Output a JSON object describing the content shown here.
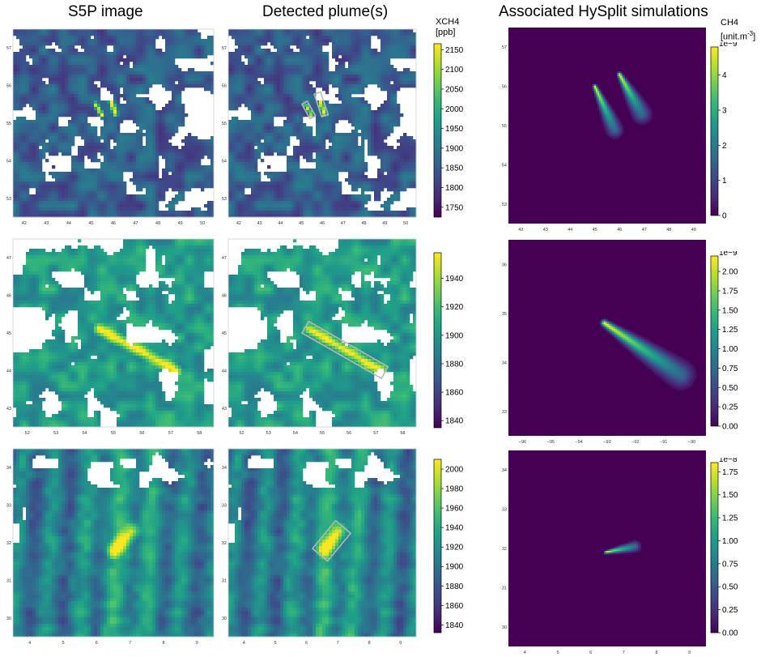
{
  "titles": {
    "s5p": "S5P image",
    "detected": "Detected plume(s)",
    "hysplit": "Associated HySplit simulations"
  },
  "units": {
    "xch4_line1": "XCH4",
    "xch4_line2": "[ppb]",
    "ch4_line1": "CH4",
    "ch4_line2_base": "[unit.m",
    "ch4_line2_exp": "-3",
    "ch4_line2_end": "]"
  },
  "colors": {
    "viridis": [
      "#440154",
      "#482878",
      "#3e4989",
      "#31688e",
      "#26828e",
      "#1f9e89",
      "#35b779",
      "#6ece58",
      "#b5de2b",
      "#fde725"
    ],
    "background_dark": "#440154",
    "plume_outline": "#b8b8b8"
  },
  "rows": [
    {
      "s5p": {
        "xticks": [
          "42",
          "43",
          "44",
          "45",
          "46",
          "47",
          "48",
          "49",
          "50"
        ],
        "yticks": [
          "57",
          "56",
          "55",
          "54",
          "53"
        ],
        "cbar_ticks": [
          1750,
          1800,
          1850,
          1900,
          1950,
          2000,
          2050,
          2100,
          2150
        ],
        "cbar_range": [
          1725,
          2165
        ],
        "plumes": [
          {
            "x1": 45.2,
            "y1": 55.5,
            "x2": 45.5,
            "y2": 55.2,
            "w": 0.12
          },
          {
            "x1": 45.8,
            "y1": 55.75,
            "x2": 46.1,
            "y2": 55.25,
            "w": 0.13
          }
        ]
      },
      "hysplit": {
        "xticks": [
          "42",
          "43",
          "44",
          "45",
          "46",
          "47",
          "48",
          "49"
        ],
        "yticks": [
          "57",
          "56",
          "55",
          "54",
          "53"
        ],
        "exponent_label": "1e−9",
        "cbar_ticks": [
          "0",
          "1",
          "2",
          "3",
          "4"
        ],
        "cbar_range": [
          0,
          4.8
        ],
        "sims": [
          {
            "x1": 45.0,
            "y1": 56.0,
            "x2": 45.8,
            "y2": 54.9,
            "w": 0.35
          },
          {
            "x1": 46.0,
            "y1": 56.3,
            "x2": 46.9,
            "y2": 55.3,
            "w": 0.4
          }
        ]
      }
    },
    {
      "s5p": {
        "xticks": [
          "52",
          "53",
          "54",
          "55",
          "56",
          "57",
          "58"
        ],
        "yticks": [
          "47",
          "46",
          "45",
          "44",
          "43"
        ],
        "cbar_ticks": [
          1840,
          1860,
          1880,
          1900,
          1920,
          1940
        ],
        "cbar_range": [
          1835,
          1958
        ],
        "plumes": [
          {
            "x1": 54.5,
            "y1": 45.1,
            "x2": 57.2,
            "y2": 44.0,
            "w": 0.2
          }
        ]
      },
      "hysplit": {
        "xticks": [
          "−96",
          "−95",
          "−94",
          "−93",
          "−92",
          "−91",
          "−90"
        ],
        "yticks": [
          "36",
          "35",
          "34",
          "33"
        ],
        "exponent_label": "1e−9",
        "cbar_ticks": [
          "0.00",
          "0.25",
          "0.50",
          "0.75",
          "1.00",
          "1.25",
          "1.50",
          "1.75",
          "2.00"
        ],
        "cbar_range": [
          0,
          2.2
        ],
        "sims": [
          {
            "x1": -93.1,
            "y1": 34.8,
            "x2": -90.4,
            "y2": 33.75,
            "w": 0.5
          }
        ]
      }
    },
    {
      "s5p": {
        "xticks": [
          "4",
          "5",
          "6",
          "7",
          "8",
          "9"
        ],
        "yticks": [
          "34",
          "33",
          "32",
          "31",
          "30"
        ],
        "cbar_ticks": [
          1840,
          1860,
          1880,
          1900,
          1920,
          1940,
          1960,
          1980,
          2000
        ],
        "cbar_range": [
          1832,
          2010
        ],
        "plumes": [
          {
            "x1": 6.55,
            "y1": 31.8,
            "x2": 7.05,
            "y2": 32.3,
            "w": 0.25
          }
        ]
      },
      "hysplit": {
        "xticks": [
          "4",
          "5",
          "6",
          "7",
          "8",
          "9"
        ],
        "yticks": [
          "34",
          "33",
          "32",
          "31",
          "30"
        ],
        "exponent_label": "1e−8",
        "cbar_ticks": [
          "0.00",
          "0.25",
          "0.50",
          "0.75",
          "1.00",
          "1.25",
          "1.50",
          "1.75"
        ],
        "cbar_range": [
          0,
          1.85
        ],
        "sims": [
          {
            "x1": 6.45,
            "y1": 31.9,
            "x2": 7.35,
            "y2": 32.05,
            "w": 0.12
          }
        ]
      }
    }
  ],
  "chart_data": [
    {
      "type": "heatmap",
      "title": "S5P image",
      "rows": 3,
      "colorbar_label": "XCH4 [ppb]",
      "colorbars": [
        {
          "range": [
            1725,
            2165
          ],
          "ticks": [
            1750,
            1800,
            1850,
            1900,
            1950,
            2000,
            2050,
            2100,
            2150
          ]
        },
        {
          "range": [
            1835,
            1958
          ],
          "ticks": [
            1840,
            1860,
            1880,
            1900,
            1920,
            1940
          ]
        },
        {
          "range": [
            1832,
            2010
          ],
          "ticks": [
            1840,
            1860,
            1880,
            1900,
            1920,
            1940,
            1960,
            1980,
            2000
          ]
        }
      ]
    },
    {
      "type": "heatmap",
      "title": "Detected plume(s)",
      "rows": 3,
      "plume_count_per_row": [
        2,
        1,
        1
      ]
    },
    {
      "type": "heatmap",
      "title": "Associated HySplit simulations",
      "rows": 3,
      "colorbar_label": "CH4 [unit.m-3]",
      "colorbars": [
        {
          "multiplier": "1e-9",
          "range": [
            0,
            4.8
          ],
          "ticks": [
            0,
            1,
            2,
            3,
            4
          ]
        },
        {
          "multiplier": "1e-9",
          "range": [
            0,
            2.2
          ],
          "ticks": [
            0,
            0.25,
            0.5,
            0.75,
            1.0,
            1.25,
            1.5,
            1.75,
            2.0
          ]
        },
        {
          "multiplier": "1e-8",
          "range": [
            0,
            1.85
          ],
          "ticks": [
            0,
            0.25,
            0.5,
            0.75,
            1.0,
            1.25,
            1.5,
            1.75
          ]
        }
      ]
    }
  ]
}
